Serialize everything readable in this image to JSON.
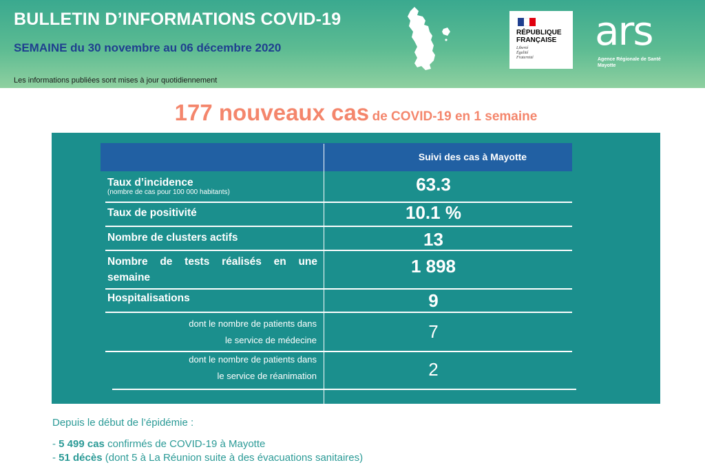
{
  "header": {
    "title": "BULLETIN D’INFORMATIONS COVID-19",
    "week": "SEMAINE du 30 novembre au 06 décembre 2020",
    "note": "Les informations publiées sont mises à jour quotidiennement",
    "colors": {
      "band_top": "#3aa98f",
      "band_bottom": "#8fd0a0",
      "week_text": "#1f3f8f"
    }
  },
  "logos": {
    "republique": {
      "line1": "RÉPUBLIQUE",
      "line2": "FRANÇAISE",
      "motto": [
        "Liberté",
        "Égalité",
        "Fraternité"
      ]
    },
    "ars": {
      "wordmark": "ars",
      "subtitle_1": "Agence Régionale de Santé",
      "subtitle_2": "Mayotte"
    },
    "map_icon": "mayotte-map-icon"
  },
  "headline": {
    "big": "177 nouveaux cas",
    "small": "de COVID-19 en 1 semaine",
    "color": "#f4866c"
  },
  "table": {
    "column_title": "Suivi des cas à Mayotte",
    "colors": {
      "panel": "#1b8f8d",
      "header": "#2160a3"
    },
    "rows": [
      {
        "label": "Taux d’incidence",
        "sublabel": "(nombre de cas pour 100 000 habitants)",
        "value": "63.3"
      },
      {
        "label": "Taux de positivité",
        "value": "10.1 %"
      },
      {
        "label": "Nombre de clusters actifs",
        "value": "13"
      },
      {
        "label_line1": "Nombre de tests réalisés en une",
        "label_line2": "semaine",
        "value": "1 898"
      },
      {
        "label": "Hospitalisations",
        "value": "9"
      },
      {
        "label_line1": "dont le nombre de patients dans",
        "label_line2": "le service de médecine",
        "value": "7"
      },
      {
        "label_line1": "dont le nombre de patients dans",
        "label_line2": "le service de réanimation",
        "value": "2"
      }
    ]
  },
  "footer": {
    "intro": "Depuis le début de l’épidémie :",
    "line1_bold": "5 499 cas",
    "line1_rest": "confirmés de COVID-19 à Mayotte",
    "line2_bold": "51 décès",
    "line2_rest": "(dont 5 à La Réunion suite à des évacuations sanitaires)",
    "bullet": "-"
  }
}
